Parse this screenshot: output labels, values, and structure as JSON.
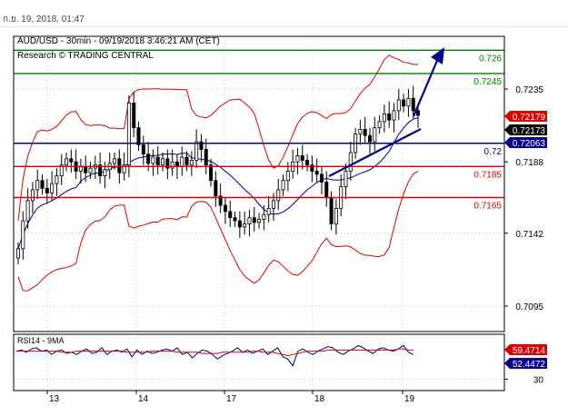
{
  "header": {
    "timestamp": "ก.ย. 19, 2018, 01:47"
  },
  "chart_data": [
    {
      "type": "candlestick",
      "title": "AUD/USD - 30min - 09/19/2018 3:46:21 AM (CET)",
      "subtitle": "Research © TRADING CENTRAL",
      "ylim": [
        0.7063,
        0.726
      ],
      "y_ticks": [
        "0.7235",
        "0.7188",
        "0.7142",
        "0.7095"
      ],
      "x_ticks": [
        "13",
        "14",
        "17",
        "18",
        "19"
      ],
      "grid": true,
      "levels": [
        {
          "label": "0.726",
          "value": 0.726,
          "color": "#008000"
        },
        {
          "label": "0.7245",
          "value": 0.7245,
          "color": "#008000"
        },
        {
          "label": "0.72",
          "value": 0.72,
          "color": "#00008b"
        },
        {
          "label": "0.7185",
          "value": 0.7185,
          "color": "#dd0000"
        },
        {
          "label": "0.7165",
          "value": 0.7165,
          "color": "#dd0000"
        }
      ],
      "price_tags": [
        {
          "label": "0.72179",
          "value": 0.72179,
          "bg": "#dd0000",
          "fg": "#ffffff"
        },
        {
          "label": "0.72173",
          "value": 0.72173,
          "bg": "#000000",
          "fg": "#ffffff"
        },
        {
          "label": "0.72063",
          "value": 0.72063,
          "bg": "#00008b",
          "fg": "#ffffff"
        }
      ],
      "close_series": [
        0.7132,
        0.715,
        0.7163,
        0.717,
        0.7176,
        0.7171,
        0.7168,
        0.7174,
        0.7179,
        0.7186,
        0.719,
        0.7188,
        0.7182,
        0.7185,
        0.7181,
        0.7184,
        0.7186,
        0.7179,
        0.7183,
        0.7187,
        0.719,
        0.7181,
        0.7186,
        0.7226,
        0.721,
        0.7199,
        0.7193,
        0.7187,
        0.7191,
        0.7186,
        0.719,
        0.7184,
        0.7188,
        0.7185,
        0.7191,
        0.7186,
        0.7189,
        0.7201,
        0.7196,
        0.7186,
        0.7176,
        0.7166,
        0.716,
        0.7156,
        0.7152,
        0.715,
        0.7146,
        0.7148,
        0.7152,
        0.7149,
        0.7151,
        0.7154,
        0.7158,
        0.7163,
        0.717,
        0.7176,
        0.7182,
        0.7188,
        0.7192,
        0.7189,
        0.7186,
        0.7182,
        0.718,
        0.7175,
        0.7165,
        0.7148,
        0.7158,
        0.7172,
        0.7182,
        0.7194,
        0.7206,
        0.7209,
        0.7205,
        0.7201,
        0.721,
        0.7214,
        0.7219,
        0.7215,
        0.7221,
        0.7228,
        0.7224,
        0.7229,
        0.7221,
        0.7218
      ],
      "annotation": "projected move up toward 0.726 with a support trendline"
    },
    {
      "type": "line",
      "title": "RSI14 - 9MA",
      "ylim": [
        20,
        70
      ],
      "y_ticks": [
        "30"
      ],
      "price_tags": [
        {
          "label": "59.4714",
          "value": 59.4714,
          "bg": "#dd0000",
          "fg": "#ffffff"
        },
        {
          "label": "52.4472",
          "value": 52.4472,
          "bg": "#00008b",
          "fg": "#ffffff"
        }
      ],
      "series": [
        {
          "values": [
            55,
            56,
            54,
            57,
            58,
            55,
            56,
            52,
            55,
            56,
            53,
            54,
            52,
            55,
            57,
            53,
            54,
            58,
            52,
            55,
            56,
            54,
            57,
            50,
            56,
            52,
            55,
            53,
            54,
            56,
            57,
            55,
            58,
            52,
            54,
            49,
            53,
            56,
            55,
            52,
            48,
            51,
            53,
            55,
            58,
            54,
            56,
            53,
            55,
            57,
            52,
            55,
            58,
            50,
            48,
            42,
            55,
            57,
            54,
            52,
            55,
            57,
            59,
            58,
            54,
            52,
            55,
            57,
            60,
            58,
            55,
            53,
            57,
            58,
            56,
            55,
            57,
            60,
            54,
            52
          ]
        },
        {
          "values": [
            55,
            55,
            55,
            55,
            55,
            55,
            55,
            55,
            55,
            54,
            54,
            54,
            55,
            55,
            55,
            55,
            55,
            55,
            55,
            55,
            55,
            55,
            54,
            54,
            54,
            54,
            54,
            55,
            55,
            55,
            55,
            55,
            54,
            54,
            54,
            54,
            54,
            53,
            53,
            53,
            53,
            54,
            54,
            54,
            54,
            54,
            54,
            55,
            55,
            54,
            54,
            54,
            53,
            52,
            51,
            52,
            53,
            54,
            55,
            55,
            55,
            55,
            56,
            56,
            56,
            56,
            56,
            56,
            56,
            56,
            56,
            56,
            56,
            56,
            56,
            56,
            57,
            57,
            56,
            56
          ]
        }
      ]
    }
  ]
}
